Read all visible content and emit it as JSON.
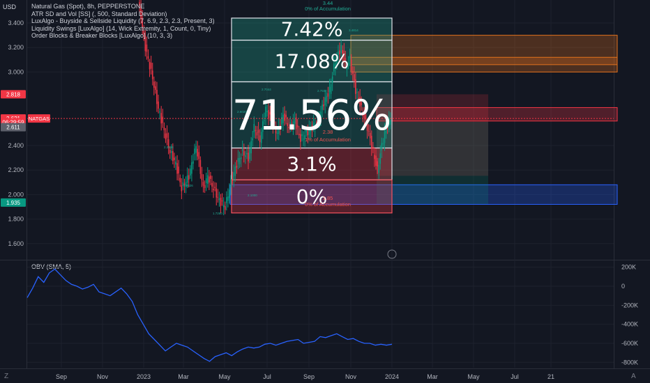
{
  "header": {
    "currency": "USD",
    "legend": [
      "Natural Gas (Spot), 8h, PEPPERSTONE",
      "ATR SD and Vol [SS] (, 500, Standard Deviation)",
      "LuxAlgo - Buyside & Sellside Liquidity (7, 6.9, 2.3, 2.3, Present, 3)",
      "Liquidity Swings [LuxAlgo] (14, Wick Extremity, 1, Count, 0, Tiny)",
      "Order Blocks & Breaker Blocks [LuxAlgo] (10, 3, 3)"
    ]
  },
  "price_badges": [
    {
      "label": "2.818",
      "value": 2.818,
      "color": "#f23645"
    },
    {
      "label": "2.621",
      "value": 2.621,
      "color": "#f23645"
    },
    {
      "label": "06:29:59",
      "value": 2.59,
      "color": "#f23645"
    },
    {
      "label": "2.611",
      "value": 2.55,
      "color": "#5d606b"
    },
    {
      "label": "1.935",
      "value": 1.935,
      "color": "#089981"
    }
  ],
  "symbol_tag": "NATGAS",
  "colors": {
    "background": "#131722",
    "grid": "#1e222d",
    "up": "#089981",
    "down": "#f23645",
    "obv": "#2962ff",
    "accum_text": "#22ab94",
    "dist_text": "#ef5350",
    "orange_block": "#e2711d",
    "blue_block": "#2962ff"
  },
  "annotations": {
    "top_value": "3.44",
    "top_text": "0% of Accumulation",
    "mid_value": "2.38",
    "mid_text": "1% of Accumulation",
    "bottom_value": "1.85",
    "bottom_text": "0% of Accumulation",
    "small_values": [
      "3.4814",
      "2.7044",
      "2.7500",
      "1.9926",
      "1.7260",
      "2.1000",
      "2.2026",
      "2.6020"
    ]
  },
  "chart_data": [
    {
      "type": "candlestick",
      "title": "Natural Gas (Spot), 8h, PEPPERSTONE",
      "y_ticks": [
        3.4,
        3.2,
        3.0,
        2.4,
        2.2,
        2.0,
        1.8,
        1.6
      ],
      "y_tick_labels": [
        "3.400",
        "3.200",
        "3.000",
        "2.400",
        "2.200",
        "2.000",
        "1.800",
        "1.600"
      ],
      "ylim": [
        1.47,
        3.57
      ],
      "x_labels": [
        "Sep",
        "Nov",
        "2023",
        "Mar",
        "May",
        "Jul",
        "Sep",
        "Nov",
        "2024",
        "Mar",
        "May",
        "Jul",
        "21"
      ],
      "price_path": [
        [
          0,
          3.57
        ],
        [
          2,
          3.45
        ],
        [
          5,
          3.2
        ],
        [
          10,
          2.95
        ],
        [
          14,
          2.7
        ],
        [
          18,
          2.52
        ],
        [
          22,
          2.35
        ],
        [
          26,
          2.25
        ],
        [
          30,
          2.05
        ],
        [
          35,
          2.15
        ],
        [
          40,
          2.4
        ],
        [
          45,
          2.05
        ],
        [
          48,
          2.15
        ],
        [
          52,
          2.05
        ],
        [
          56,
          1.95
        ],
        [
          60,
          1.9
        ],
        [
          64,
          2.1
        ],
        [
          68,
          2.25
        ],
        [
          72,
          2.35
        ],
        [
          76,
          2.3
        ],
        [
          80,
          2.55
        ],
        [
          84,
          2.45
        ],
        [
          88,
          2.7
        ],
        [
          92,
          2.6
        ],
        [
          96,
          2.5
        ],
        [
          100,
          2.65
        ],
        [
          104,
          2.55
        ],
        [
          108,
          2.6
        ],
        [
          112,
          2.45
        ],
        [
          116,
          2.5
        ],
        [
          120,
          2.55
        ],
        [
          124,
          2.6
        ],
        [
          128,
          2.75
        ],
        [
          132,
          2.85
        ],
        [
          136,
          3.1
        ],
        [
          140,
          3.2
        ],
        [
          143,
          3.05
        ],
        [
          146,
          3.1
        ],
        [
          150,
          2.85
        ],
        [
          154,
          2.7
        ],
        [
          158,
          2.55
        ],
        [
          162,
          2.35
        ],
        [
          165,
          2.2
        ],
        [
          168,
          2.4
        ],
        [
          171,
          2.55
        ],
        [
          174,
          2.621
        ]
      ],
      "ranges": [
        {
          "label": "7.42%",
          "from": 3.26,
          "to": 3.44,
          "zone": "accumulation"
        },
        {
          "label": "17.08%",
          "from": 2.92,
          "to": 3.26,
          "zone": "accumulation"
        },
        {
          "label": "71.56%",
          "from": 2.38,
          "to": 2.92,
          "zone": "accumulation"
        },
        {
          "label": "3.1%",
          "from": 2.12,
          "to": 2.38,
          "zone": "distribution"
        },
        {
          "label": "0%",
          "from": 1.85,
          "to": 2.12,
          "zone": "distribution"
        }
      ],
      "order_blocks": [
        {
          "kind": "bearish",
          "from": 3.0,
          "to": 3.3
        },
        {
          "kind": "bearish",
          "from": 3.06,
          "to": 3.12
        },
        {
          "kind": "bearish",
          "from": 2.6,
          "to": 2.71
        },
        {
          "kind": "bullish",
          "from": 1.92,
          "to": 2.08
        }
      ]
    },
    {
      "type": "line",
      "title": "OBV (SMA, 5)",
      "y_ticks": [
        200000,
        0,
        -200000,
        -400000,
        -600000,
        -800000
      ],
      "y_tick_labels": [
        "200K",
        "0",
        "-200K",
        "-400K",
        "-600K",
        "-800K"
      ],
      "ylim": [
        -830000,
        260000
      ],
      "values": [
        -120000,
        -20000,
        100000,
        40000,
        140000,
        180000,
        120000,
        60000,
        20000,
        0,
        -30000,
        -10000,
        20000,
        -60000,
        -80000,
        -100000,
        -60000,
        -20000,
        -80000,
        -160000,
        -300000,
        -400000,
        -500000,
        -560000,
        -620000,
        -680000,
        -640000,
        -600000,
        -620000,
        -640000,
        -680000,
        -720000,
        -760000,
        -790000,
        -740000,
        -720000,
        -700000,
        -730000,
        -690000,
        -660000,
        -640000,
        -650000,
        -640000,
        -610000,
        -600000,
        -620000,
        -600000,
        -580000,
        -570000,
        -560000,
        -600000,
        -590000,
        -580000,
        -530000,
        -540000,
        -520000,
        -500000,
        -530000,
        -560000,
        -550000,
        -580000,
        -600000,
        -600000,
        -620000,
        -610000,
        -620000,
        -610000
      ]
    }
  ]
}
